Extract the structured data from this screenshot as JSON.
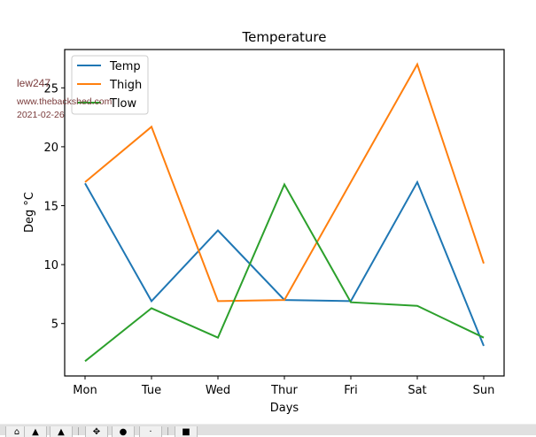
{
  "window": {
    "watermark": {
      "name": "lew247",
      "url": "www.thebackshed.com",
      "date": "2021-02-26"
    },
    "toolbar": {
      "buttons": [
        {
          "name": "home",
          "glyph": "⌂"
        },
        {
          "name": "back",
          "glyph": "▲"
        },
        {
          "name": "forward",
          "glyph": "▲"
        },
        {
          "name": "pan",
          "glyph": "✥"
        },
        {
          "name": "zoom",
          "glyph": "●"
        },
        {
          "name": "configure",
          "glyph": "·"
        },
        {
          "name": "save",
          "glyph": "■"
        }
      ]
    }
  },
  "colors": {
    "Temp": "#1f77b4",
    "Thigh": "#ff7f0e",
    "Tlow": "#2ca02c",
    "axis": "#000000",
    "legend_border": "#cccccc"
  },
  "chart_data": {
    "type": "line",
    "title": "Temperature",
    "xlabel": "Days",
    "ylabel": "Deg °C",
    "categories": [
      "Mon",
      "Tue",
      "Wed",
      "Thur",
      "Fri",
      "Sat",
      "Sun"
    ],
    "series": [
      {
        "name": "Temp",
        "values": [
          16.9,
          6.9,
          12.9,
          7.0,
          6.9,
          17.0,
          3.1
        ]
      },
      {
        "name": "Thigh",
        "values": [
          17.0,
          21.7,
          6.9,
          7.0,
          17.0,
          27.0,
          10.1
        ]
      },
      {
        "name": "Tlow",
        "values": [
          1.8,
          6.3,
          3.8,
          16.8,
          6.8,
          6.5,
          3.8
        ]
      }
    ],
    "yticks": [
      5,
      10,
      15,
      20,
      25
    ],
    "ylim": [
      0.55,
      28.25
    ],
    "grid": false,
    "legend": {
      "placement": "upper-left",
      "entries": [
        "Temp",
        "Thigh",
        "Tlow"
      ]
    }
  }
}
